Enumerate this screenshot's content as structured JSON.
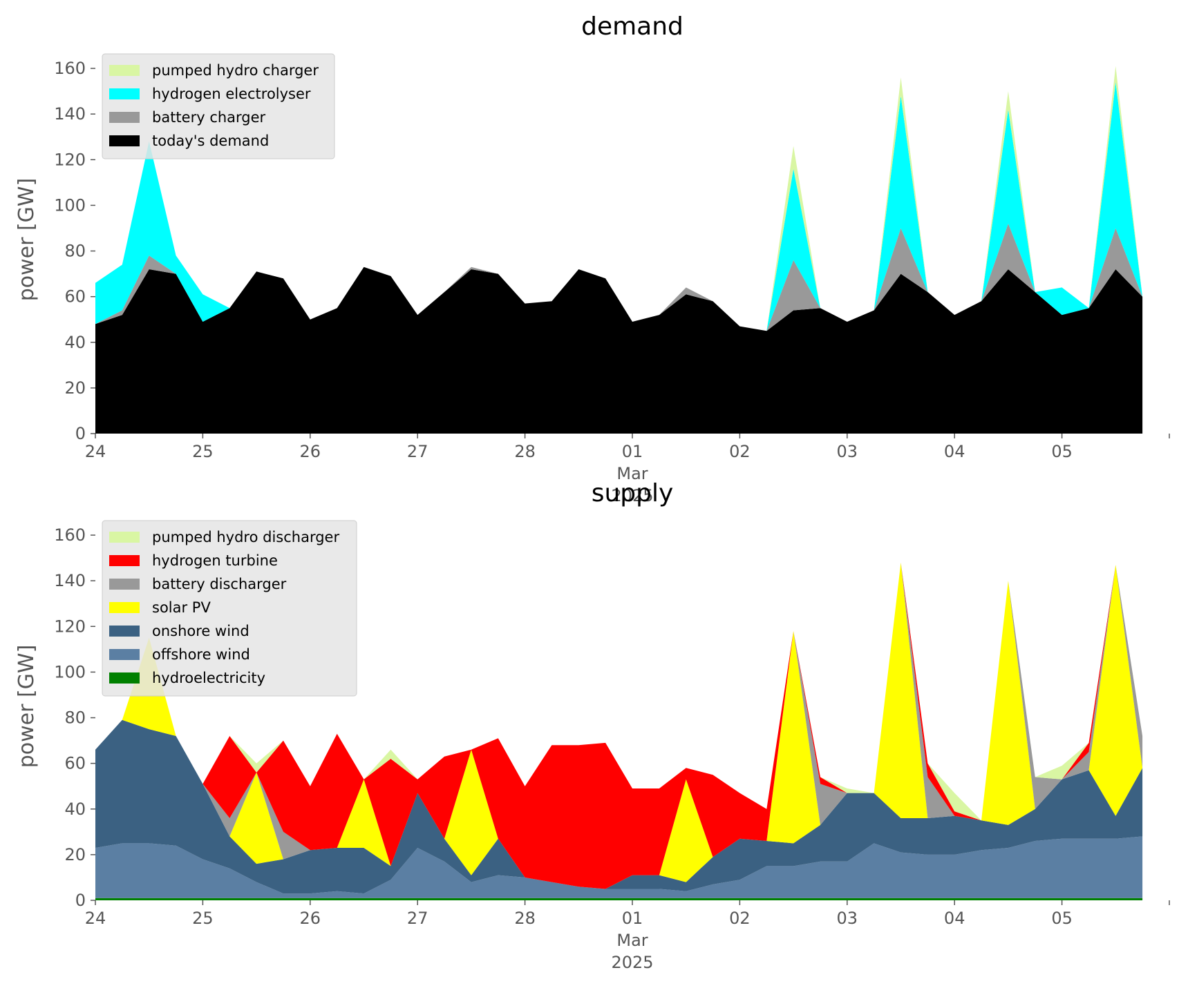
{
  "chart_data": [
    {
      "type": "area",
      "stacked": true,
      "title": "demand",
      "ylabel": "power [GW]",
      "xlabel": "",
      "ylim": [
        0,
        170
      ],
      "yticks": [
        0,
        20,
        40,
        60,
        80,
        100,
        120,
        140,
        160
      ],
      "x_start": "2025-02-24",
      "x_end": "2025-03-06",
      "x_step_days": 0.25,
      "xticks": [
        {
          "date": "2025-02-24",
          "label": "24"
        },
        {
          "date": "2025-02-25",
          "label": "25"
        },
        {
          "date": "2025-02-26",
          "label": "26"
        },
        {
          "date": "2025-02-27",
          "label": "27"
        },
        {
          "date": "2025-02-28",
          "label": "28"
        },
        {
          "date": "2025-03-01",
          "label": "01",
          "sublabel": "Mar",
          "subsublabel": "2025"
        },
        {
          "date": "2025-03-02",
          "label": "02"
        },
        {
          "date": "2025-03-03",
          "label": "03"
        },
        {
          "date": "2025-03-04",
          "label": "04"
        },
        {
          "date": "2025-03-05",
          "label": "05"
        }
      ],
      "grid": false,
      "legend_position": "top-left",
      "series": [
        {
          "name": "today's demand",
          "color": "#000000",
          "values": [
            48,
            52,
            72,
            70,
            49,
            55,
            71,
            68,
            50,
            55,
            73,
            69,
            52,
            62,
            72,
            70,
            57,
            58,
            72,
            68,
            49,
            52,
            61,
            58,
            47,
            45,
            54,
            55,
            49,
            54,
            70,
            62,
            52,
            58,
            72,
            62,
            52,
            55,
            72,
            60
          ]
        },
        {
          "name": "battery charger",
          "color": "#999999",
          "values": [
            0,
            2,
            6,
            0,
            0,
            0,
            0,
            0,
            0,
            0,
            0,
            0,
            0,
            0,
            1,
            0,
            0,
            0,
            0,
            0,
            0,
            0,
            3,
            0,
            0,
            0,
            22,
            0,
            0,
            0,
            20,
            0,
            0,
            0,
            20,
            0,
            0,
            0,
            18,
            0
          ]
        },
        {
          "name": "hydrogen electrolyser",
          "color": "#00FFFF",
          "values": [
            18,
            20,
            50,
            8,
            12,
            0,
            0,
            0,
            0,
            0,
            0,
            0,
            0,
            0,
            0,
            0,
            0,
            0,
            0,
            0,
            0,
            0,
            0,
            0,
            0,
            0,
            40,
            0,
            0,
            0,
            58,
            0,
            0,
            0,
            50,
            0,
            12,
            0,
            64,
            0
          ]
        },
        {
          "name": "pumped hydro charger",
          "color": "#D9F6A3",
          "values": [
            0,
            0,
            0,
            0,
            0,
            0,
            0,
            0,
            0,
            0,
            0,
            0,
            0,
            0,
            0,
            0,
            0,
            0,
            0,
            0,
            0,
            0,
            0,
            0,
            0,
            0,
            10,
            0,
            0,
            0,
            8,
            0,
            0,
            0,
            8,
            0,
            0,
            0,
            7,
            0
          ]
        }
      ],
      "legend_order": [
        "pumped hydro charger",
        "hydrogen electrolyser",
        "battery charger",
        "today's demand"
      ]
    },
    {
      "type": "area",
      "stacked": true,
      "title": "supply",
      "ylabel": "power [GW]",
      "xlabel": "",
      "ylim": [
        0,
        170
      ],
      "yticks": [
        0,
        20,
        40,
        60,
        80,
        100,
        120,
        140,
        160
      ],
      "x_start": "2025-02-24",
      "x_end": "2025-03-06",
      "x_step_days": 0.25,
      "xticks": [
        {
          "date": "2025-02-24",
          "label": "24"
        },
        {
          "date": "2025-02-25",
          "label": "25"
        },
        {
          "date": "2025-02-26",
          "label": "26"
        },
        {
          "date": "2025-02-27",
          "label": "27"
        },
        {
          "date": "2025-02-28",
          "label": "28"
        },
        {
          "date": "2025-03-01",
          "label": "01",
          "sublabel": "Mar",
          "subsublabel": "2025"
        },
        {
          "date": "2025-03-02",
          "label": "02"
        },
        {
          "date": "2025-03-03",
          "label": "03"
        },
        {
          "date": "2025-03-04",
          "label": "04"
        },
        {
          "date": "2025-03-05",
          "label": "05"
        }
      ],
      "grid": false,
      "legend_position": "top-left",
      "series": [
        {
          "name": "hydroelectricity",
          "color": "#008000",
          "values": [
            1,
            1,
            1,
            1,
            1,
            1,
            1,
            1,
            1,
            1,
            1,
            1,
            1,
            1,
            1,
            1,
            1,
            1,
            1,
            1,
            1,
            1,
            1,
            1,
            1,
            1,
            1,
            1,
            1,
            1,
            1,
            1,
            1,
            1,
            1,
            1,
            1,
            1,
            1,
            1
          ]
        },
        {
          "name": "offshore wind",
          "color": "#5B7FA3",
          "values": [
            22,
            24,
            24,
            23,
            17,
            13,
            7,
            2,
            2,
            3,
            2,
            8,
            22,
            16,
            7,
            10,
            9,
            7,
            5,
            4,
            4,
            4,
            3,
            6,
            8,
            14,
            14,
            16,
            16,
            24,
            20,
            19,
            19,
            21,
            22,
            25,
            26,
            26,
            26,
            27
          ]
        },
        {
          "name": "onshore wind",
          "color": "#3B6182",
          "values": [
            43,
            54,
            50,
            48,
            33,
            14,
            8,
            15,
            19,
            19,
            20,
            6,
            24,
            10,
            3,
            16,
            0,
            0,
            0,
            0,
            6,
            6,
            4,
            12,
            18,
            11,
            10,
            16,
            30,
            22,
            15,
            16,
            17,
            13,
            10,
            14,
            26,
            30,
            10,
            30
          ]
        },
        {
          "name": "solar PV",
          "color": "#FFFF00",
          "values": [
            0,
            0,
            40,
            0,
            0,
            0,
            40,
            0,
            0,
            0,
            30,
            0,
            0,
            0,
            55,
            0,
            0,
            0,
            0,
            0,
            0,
            0,
            45,
            0,
            0,
            0,
            93,
            0,
            0,
            0,
            112,
            0,
            0,
            0,
            107,
            0,
            0,
            0,
            110,
            0
          ]
        },
        {
          "name": "battery discharger",
          "color": "#999999",
          "values": [
            0,
            0,
            0,
            0,
            0,
            8,
            0,
            12,
            0,
            0,
            0,
            0,
            0,
            0,
            0,
            0,
            0,
            0,
            0,
            0,
            0,
            0,
            0,
            0,
            0,
            0,
            0,
            18,
            0,
            0,
            0,
            18,
            0,
            0,
            0,
            14,
            0,
            8,
            0,
            14
          ]
        },
        {
          "name": "hydrogen turbine",
          "color": "#FF0000",
          "values": [
            0,
            0,
            0,
            0,
            0,
            36,
            0,
            40,
            28,
            50,
            0,
            47,
            6,
            36,
            0,
            44,
            40,
            60,
            62,
            64,
            38,
            38,
            5,
            36,
            20,
            14,
            0,
            3,
            0,
            0,
            0,
            6,
            2,
            0,
            0,
            0,
            0,
            4,
            0,
            0
          ]
        },
        {
          "name": "pumped hydro discharger",
          "color": "#D9F6A3",
          "values": [
            0,
            0,
            0,
            0,
            0,
            0,
            4,
            0,
            0,
            0,
            0,
            4,
            0,
            0,
            0,
            0,
            0,
            0,
            0,
            0,
            0,
            0,
            0,
            0,
            0,
            0,
            0,
            0,
            2,
            0,
            0,
            0,
            8,
            0,
            0,
            0,
            6,
            0,
            0,
            0
          ]
        }
      ],
      "legend_order": [
        "pumped hydro discharger",
        "hydrogen turbine",
        "battery discharger",
        "solar PV",
        "onshore wind",
        "offshore wind",
        "hydroelectricity"
      ]
    }
  ]
}
